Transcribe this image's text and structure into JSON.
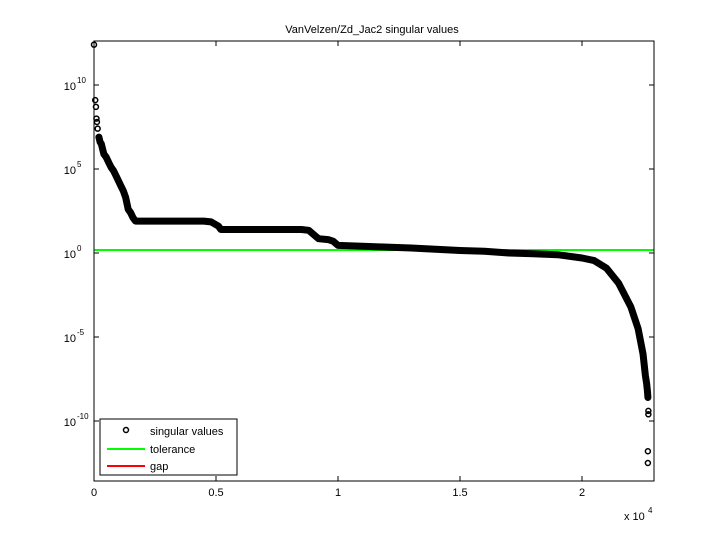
{
  "chart_data": {
    "type": "scatter",
    "title": "VanVelzen/Zd_Jac2 singular values",
    "xlabel": "",
    "ylabel": "",
    "x_multiplier_label": "x 10",
    "x_multiplier_exp": "4",
    "xlim": [
      0,
      2.3
    ],
    "ylim_log10": [
      -13.5,
      12.5
    ],
    "yscale": "log",
    "grid": false,
    "legend_position": "lower left",
    "x_ticks": [
      {
        "value": 0,
        "label": "0"
      },
      {
        "value": 0.5,
        "label": "0.5"
      },
      {
        "value": 1,
        "label": "1"
      },
      {
        "value": 1.5,
        "label": "1.5"
      },
      {
        "value": 2,
        "label": "2"
      }
    ],
    "y_ticks": [
      {
        "exp": 10,
        "base": "10",
        "sup": "10"
      },
      {
        "exp": 5,
        "base": "10",
        "sup": "5"
      },
      {
        "exp": 0,
        "base": "10",
        "sup": "0"
      },
      {
        "exp": -5,
        "base": "10",
        "sup": "-5"
      },
      {
        "exp": -10,
        "base": "10",
        "sup": "-10"
      }
    ],
    "series": [
      {
        "name": "singular values",
        "marker": "circle",
        "color": "#000000",
        "x_scale": "x10^4",
        "points_log10": [
          [
            0.0,
            12.4
          ],
          [
            0.005,
            9.1
          ],
          [
            0.008,
            8.7
          ],
          [
            0.01,
            8.0
          ],
          [
            0.012,
            7.8
          ],
          [
            0.015,
            7.4
          ],
          [
            0.02,
            6.9
          ],
          [
            0.025,
            6.6
          ],
          [
            0.03,
            6.5
          ],
          [
            0.04,
            5.9
          ],
          [
            0.05,
            5.7
          ],
          [
            0.06,
            5.4
          ],
          [
            0.07,
            5.1
          ],
          [
            0.08,
            4.9
          ],
          [
            0.09,
            4.6
          ],
          [
            0.1,
            4.3
          ],
          [
            0.11,
            4.0
          ],
          [
            0.12,
            3.7
          ],
          [
            0.13,
            3.3
          ],
          [
            0.14,
            2.6
          ],
          [
            0.15,
            2.4
          ],
          [
            0.16,
            2.1
          ],
          [
            0.17,
            1.9
          ],
          [
            0.3,
            1.9
          ],
          [
            0.45,
            1.9
          ],
          [
            0.48,
            1.85
          ],
          [
            0.51,
            1.6
          ],
          [
            0.52,
            1.4
          ],
          [
            0.6,
            1.4
          ],
          [
            0.7,
            1.4
          ],
          [
            0.85,
            1.4
          ],
          [
            0.88,
            1.35
          ],
          [
            0.9,
            1.1
          ],
          [
            0.92,
            0.85
          ],
          [
            0.96,
            0.8
          ],
          [
            0.98,
            0.7
          ],
          [
            1.0,
            0.45
          ],
          [
            1.1,
            0.4
          ],
          [
            1.2,
            0.35
          ],
          [
            1.3,
            0.3
          ],
          [
            1.4,
            0.22
          ],
          [
            1.5,
            0.15
          ],
          [
            1.6,
            0.1
          ],
          [
            1.7,
            0.0
          ],
          [
            1.8,
            -0.05
          ],
          [
            1.9,
            -0.1
          ],
          [
            2.0,
            -0.3
          ],
          [
            2.05,
            -0.45
          ],
          [
            2.1,
            -0.9
          ],
          [
            2.15,
            -1.8
          ],
          [
            2.2,
            -3.2
          ],
          [
            2.23,
            -4.5
          ],
          [
            2.25,
            -6.0
          ],
          [
            2.26,
            -7.3
          ],
          [
            2.265,
            -7.8
          ],
          [
            2.268,
            -8.2
          ],
          [
            2.27,
            -8.6
          ],
          [
            2.272,
            -9.4
          ],
          [
            2.272,
            -9.6
          ],
          [
            2.27,
            -11.8
          ],
          [
            2.27,
            -12.5
          ]
        ]
      },
      {
        "name": "tolerance",
        "type": "hline",
        "color": "#00ff00",
        "value_log10": 0.18
      },
      {
        "name": "gap",
        "type": "line",
        "color": "#ff0000",
        "points": []
      }
    ]
  },
  "legend": {
    "items": [
      {
        "label": "singular values",
        "kind": "marker",
        "color": "#000000"
      },
      {
        "label": "tolerance",
        "kind": "line",
        "color": "#00ff00"
      },
      {
        "label": "gap",
        "kind": "line",
        "color": "#ff0000"
      }
    ]
  },
  "colors": {
    "axes": "#000000",
    "background": "#ffffff",
    "tolerance": "#00ff00",
    "gap": "#ff0000",
    "markers": "#000000"
  }
}
